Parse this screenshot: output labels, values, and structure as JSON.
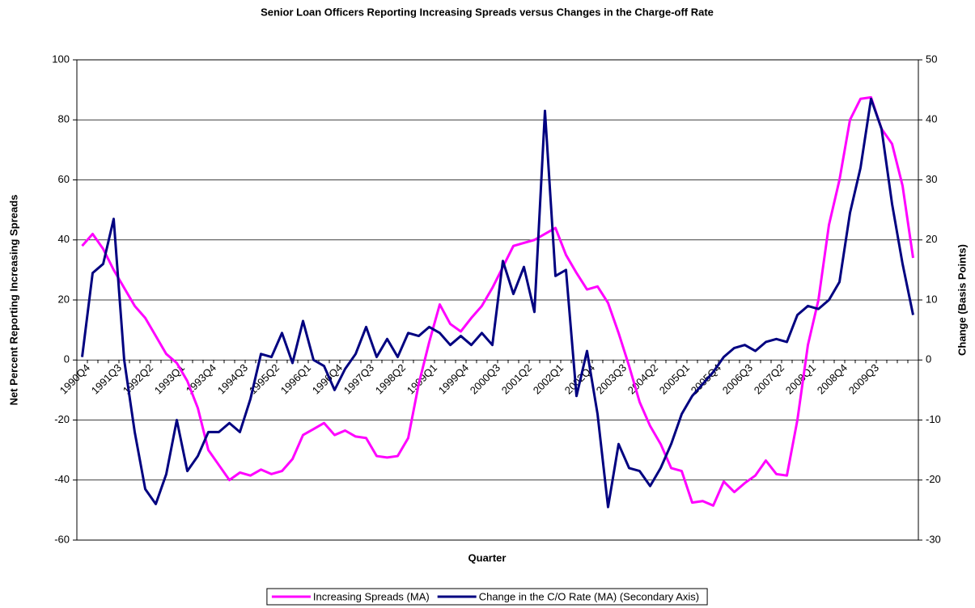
{
  "chart_data": {
    "type": "line",
    "title": "Senior Loan Officers Reporting Increasing Spreads versus Changes in the Charge-off Rate",
    "x_label": "Quarter",
    "y_label": "Net Percent Reporting Increasing Spreads",
    "y2_label": "Change (Basis Points)",
    "categories": [
      "1990Q4",
      null,
      null,
      "1991Q3",
      null,
      null,
      "1992Q2",
      null,
      null,
      "1993Q1",
      null,
      null,
      "1993Q4",
      null,
      null,
      "1994Q3",
      null,
      null,
      "1995Q2",
      null,
      null,
      "1996Q1",
      null,
      null,
      "1996Q4",
      null,
      null,
      "1997Q3",
      null,
      null,
      "1998Q2",
      null,
      null,
      "1999Q1",
      null,
      null,
      "1999Q4",
      null,
      null,
      "2000Q3",
      null,
      null,
      "2001Q2",
      null,
      null,
      "2002Q1",
      null,
      null,
      "2002Q4",
      null,
      null,
      "2003Q3",
      null,
      null,
      "2004Q2",
      null,
      null,
      "2005Q1",
      null,
      null,
      "2005Q4",
      null,
      null,
      "2006Q3",
      null,
      null,
      "2007Q2",
      null,
      null,
      "2008Q1",
      null,
      null,
      "2008Q4",
      null,
      null,
      "2009Q3",
      null,
      null,
      null,
      null
    ],
    "series": [
      {
        "name": "Increasing Spreads (MA)",
        "color": "#ff00ff",
        "axis": "y",
        "values": [
          38,
          42,
          37,
          30,
          24,
          18,
          14,
          8,
          2,
          -1,
          -7,
          -16,
          -30,
          -35,
          -40,
          -37.5,
          -38.5,
          -36.5,
          -38,
          -37,
          -33,
          -25,
          -23,
          -21,
          -25,
          -23.5,
          -25.5,
          -26,
          -32,
          -32.5,
          -32,
          -26,
          -8,
          6,
          18.5,
          12,
          9.5,
          14,
          18,
          24,
          31,
          38,
          39,
          40,
          42,
          44,
          35,
          29,
          23.5,
          24.5,
          19,
          9,
          -2,
          -14,
          -22,
          -28,
          -36,
          -37,
          -47.5,
          -47,
          -48.5,
          -40.5,
          -44,
          -41,
          -38.5,
          -33.5,
          -38,
          -38.5,
          -20,
          5,
          20,
          45,
          60,
          80,
          87,
          87.5,
          77,
          72,
          58,
          34
        ]
      },
      {
        "name": "Change in the C/O Rate (MA) (Secondary Axis)",
        "color": "#000080",
        "axis": "y2",
        "values": [
          0.5,
          14.5,
          16,
          23.5,
          0,
          -12,
          -21.5,
          -24,
          -19,
          -10,
          -18.5,
          -16,
          -12,
          -12,
          -10.5,
          -12,
          -6.5,
          1,
          0.5,
          4.5,
          -0.5,
          6.5,
          0,
          -1,
          -5,
          -1.5,
          1,
          5.5,
          0.5,
          3.5,
          0.5,
          4.5,
          4,
          5.5,
          4.5,
          2.5,
          4,
          2.5,
          4.5,
          2.5,
          16.5,
          11,
          15.5,
          8,
          41.5,
          14,
          15,
          -6,
          1.5,
          -9,
          -24.5,
          -14,
          -18,
          -18.5,
          -21,
          -18,
          -14,
          -9,
          -6,
          -4,
          -2,
          0.5,
          2,
          2.5,
          1.5,
          3,
          3.5,
          3,
          7.5,
          9,
          8.5,
          10,
          13,
          24.5,
          32,
          43.5,
          38.5,
          26,
          16,
          7.5
        ]
      }
    ],
    "ylim": [
      -60,
      100
    ],
    "yticks": [
      -60,
      -40,
      -20,
      0,
      20,
      40,
      60,
      80,
      100
    ],
    "y2lim": [
      -30,
      50
    ],
    "y2ticks": [
      -30,
      -20,
      -10,
      0,
      10,
      20,
      30,
      40,
      50
    ],
    "grid": true,
    "legend": "bottom"
  }
}
